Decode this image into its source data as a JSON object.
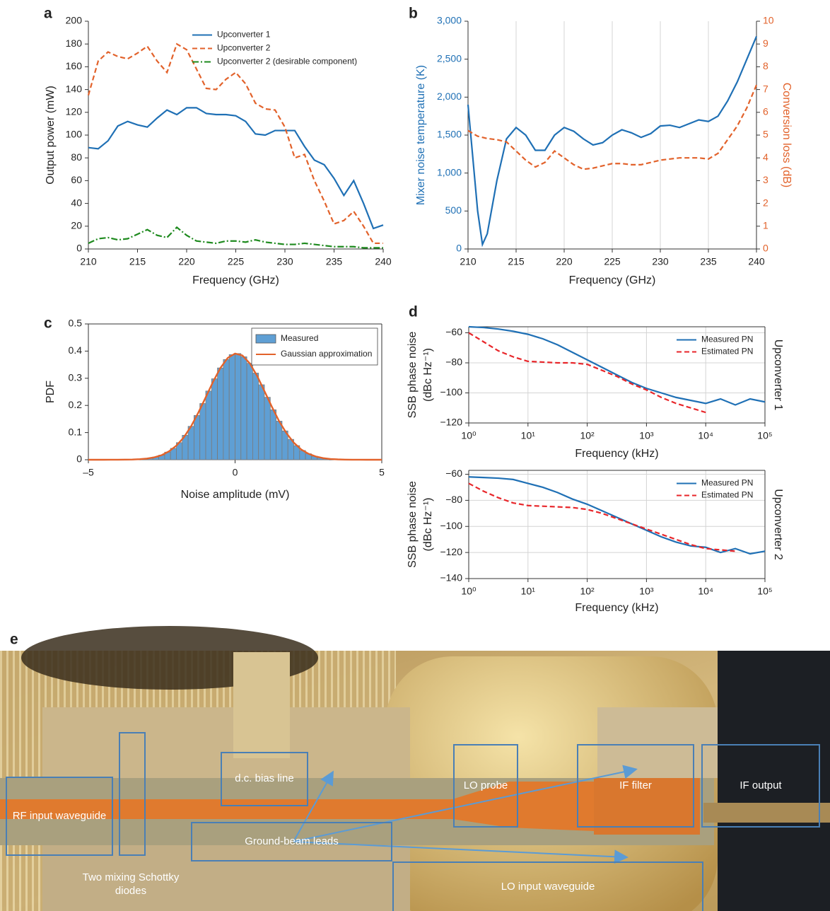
{
  "chart_data": [
    {
      "type": "line",
      "panel_label": "a",
      "xlabel": "Frequency (GHz)",
      "ylabel": "Output power (mW)",
      "x": [
        210,
        211,
        212,
        213,
        214,
        215,
        216,
        217,
        218,
        219,
        220,
        221,
        222,
        223,
        224,
        225,
        226,
        227,
        228,
        229,
        230,
        231,
        232,
        233,
        234,
        235,
        236,
        237,
        238,
        239,
        240
      ],
      "xlim": [
        210,
        240
      ],
      "xticks": [
        210,
        215,
        220,
        225,
        230,
        235,
        240
      ],
      "ylim": [
        0,
        200
      ],
      "yticks": [
        0,
        20,
        40,
        60,
        80,
        100,
        120,
        140,
        160,
        180,
        200
      ],
      "grid": false,
      "legend": "upper right",
      "series": [
        {
          "name": "Upconverter 1",
          "color": "#1f70b5",
          "style": "solid",
          "values": [
            89,
            88,
            95,
            108,
            112,
            109,
            107,
            115,
            122,
            118,
            124,
            124,
            119,
            118,
            118,
            117,
            112,
            101,
            100,
            104,
            104,
            104,
            90,
            78,
            74,
            62,
            47,
            60,
            40,
            18,
            21
          ]
        },
        {
          "name": "Upconverter 2",
          "color": "#e2622b",
          "style": "dashed",
          "values": [
            135,
            165,
            173,
            169,
            167,
            172,
            178,
            165,
            155,
            180,
            175,
            158,
            141,
            140,
            149,
            155,
            145,
            128,
            123,
            122,
            107,
            80,
            83,
            60,
            42,
            22,
            25,
            33,
            20,
            5,
            5
          ]
        },
        {
          "name": "Upconverter 2 (desirable component)",
          "color": "#1e8a1e",
          "style": "dashdot",
          "values": [
            5,
            9,
            10,
            8,
            9,
            13,
            17,
            12,
            10,
            19,
            12,
            7,
            6,
            5,
            7,
            7,
            6,
            8,
            6,
            5,
            4,
            4,
            5,
            4,
            3,
            2,
            2,
            2,
            1,
            1,
            1
          ]
        }
      ]
    },
    {
      "type": "line",
      "panel_label": "b",
      "xlabel": "Frequency (GHz)",
      "ylabel": "Mixer noise temperature (K)",
      "y2label": "Conversion loss (dB)",
      "x": [
        210,
        211,
        211.5,
        212,
        213,
        214,
        215,
        216,
        217,
        218,
        219,
        220,
        221,
        222,
        223,
        224,
        225,
        226,
        227,
        228,
        229,
        230,
        231,
        232,
        233,
        234,
        235,
        236,
        237,
        238,
        239,
        240
      ],
      "xlim": [
        210,
        240
      ],
      "xticks": [
        210,
        215,
        220,
        225,
        230,
        235,
        240
      ],
      "ylim": [
        0,
        3000
      ],
      "yticks": [
        0,
        500,
        {
          "value": 1000,
          "label": "1,000"
        },
        {
          "value": 1500,
          "label": "1,500"
        },
        {
          "value": 2000,
          "label": "2,000"
        },
        {
          "value": 2500,
          "label": "2,500"
        },
        {
          "value": 3000,
          "label": "3,000"
        }
      ],
      "y2lim": [
        0,
        10
      ],
      "y2ticks": [
        0,
        1,
        2,
        3,
        4,
        5,
        6,
        7,
        8,
        9,
        10
      ],
      "grid": "x",
      "series": [
        {
          "color": "#1f70b5",
          "style": "solid",
          "values": [
            1900,
            500,
            60,
            200,
            900,
            1450,
            1600,
            1500,
            1300,
            1300,
            1500,
            1600,
            1550,
            1450,
            1370,
            1400,
            1500,
            1570,
            1530,
            1470,
            1520,
            1620,
            1630,
            1600,
            1650,
            1700,
            1680,
            1750,
            1950,
            2200,
            2500,
            2800
          ]
        },
        {
          "color": "#e2622b",
          "style": "dashed",
          "axis": "y2",
          "values": [
            5.2,
            4.95,
            4.9,
            4.85,
            4.8,
            4.7,
            4.3,
            3.9,
            3.6,
            3.8,
            4.3,
            4.0,
            3.7,
            3.5,
            3.55,
            3.65,
            3.75,
            3.75,
            3.7,
            3.7,
            3.8,
            3.9,
            3.95,
            4.0,
            4.0,
            4.0,
            3.95,
            4.2,
            4.8,
            5.4,
            6.2,
            7.2
          ]
        }
      ]
    },
    {
      "type": "histogram",
      "panel_label": "c",
      "xlabel": "Noise amplitude (mV)",
      "ylabel": "PDF",
      "xlim": [
        -5,
        5
      ],
      "xticks": [
        {
          "value": -5,
          "label": "–5"
        },
        0,
        5
      ],
      "ylim": [
        0,
        0.5
      ],
      "yticks": [
        0,
        0.1,
        0.2,
        0.3,
        0.4,
        0.5
      ],
      "legend": "upper right",
      "bar_name": "Measured",
      "color": "#5f9fd4",
      "bins": [
        -3.2,
        -3,
        -2.8,
        -2.6,
        -2.4,
        -2.2,
        -2,
        -1.8,
        -1.6,
        -1.4,
        -1.2,
        -1,
        -0.8,
        -0.6,
        -0.4,
        -0.2,
        0,
        0.2,
        0.4,
        0.6,
        0.8,
        1,
        1.2,
        1.4,
        1.6,
        1.8,
        2,
        2.2,
        2.4,
        2.6,
        2.8,
        3,
        3.2
      ],
      "values": [
        0.003,
        0.006,
        0.01,
        0.017,
        0.028,
        0.042,
        0.063,
        0.09,
        0.123,
        0.163,
        0.207,
        0.253,
        0.298,
        0.338,
        0.369,
        0.387,
        0.391,
        0.379,
        0.355,
        0.319,
        0.276,
        0.23,
        0.184,
        0.142,
        0.106,
        0.075,
        0.052,
        0.034,
        0.022,
        0.013,
        0.008,
        0.004
      ],
      "lines": [
        {
          "name": "Gaussian approximation",
          "color": "#e2622b",
          "style": "solid",
          "x": [
            -5,
            -4.75,
            -4.5,
            -4.25,
            -4,
            -3.75,
            -3.5,
            -3.25,
            -3,
            -2.75,
            -2.5,
            -2.25,
            -2,
            -1.75,
            -1.5,
            -1.25,
            -1,
            -0.75,
            -0.5,
            -0.25,
            0,
            0.25,
            0.5,
            0.75,
            1,
            1.25,
            1.5,
            1.75,
            2,
            2.25,
            2.5,
            2.75,
            3,
            3.25,
            3.5,
            3.75,
            4,
            4.25,
            4.5,
            4.75,
            5
          ],
          "values": [
            0,
            0,
            0,
            0.0001,
            0.0001,
            0.0004,
            0.0009,
            0.0021,
            0.0045,
            0.009,
            0.017,
            0.031,
            0.052,
            0.082,
            0.123,
            0.174,
            0.23,
            0.287,
            0.338,
            0.375,
            0.391,
            0.384,
            0.355,
            0.309,
            0.253,
            0.196,
            0.142,
            0.098,
            0.063,
            0.038,
            0.022,
            0.012,
            0.006,
            0.0029,
            0.0013,
            0.0005,
            0.0002,
            0.0001,
            0,
            0,
            0
          ]
        }
      ]
    },
    {
      "type": "line",
      "panel_label": "d",
      "xscale": "log",
      "xlabel": "Frequency (kHz)",
      "ylabel": [
        "SSB phase noise",
        "(dBc Hz⁻¹)"
      ],
      "side_label": "Upconverter 1",
      "x": [
        1,
        1.78,
        3.16,
        5.62,
        10,
        17.8,
        31.6,
        56.2,
        100,
        178,
        316,
        562,
        1000,
        1780,
        3160,
        5620,
        10000,
        17800,
        31600,
        56200,
        100000
      ],
      "xlim": [
        1,
        100000
      ],
      "xticks": [
        {
          "value": 1,
          "label": "10⁰"
        },
        {
          "value": 10,
          "label": "10¹"
        },
        {
          "value": 100,
          "label": "10²"
        },
        {
          "value": 1000,
          "label": "10³"
        },
        {
          "value": 10000,
          "label": "10⁴"
        },
        {
          "value": 100000,
          "label": "10⁵"
        }
      ],
      "ylim": [
        -120,
        -56
      ],
      "yticks": [
        {
          "value": -120,
          "label": "−120"
        },
        {
          "value": -100,
          "label": "−100"
        },
        {
          "value": -80,
          "label": "−80"
        },
        {
          "value": -60,
          "label": "−60"
        }
      ],
      "grid": true,
      "legend": "upper right",
      "series": [
        {
          "name": "Measured PN",
          "color": "#1f70b5",
          "style": "solid",
          "values": [
            -56,
            -56.5,
            -57.5,
            -59,
            -61,
            -64,
            -68,
            -73,
            -78,
            -83,
            -88,
            -93,
            -97,
            -100,
            -103,
            -105,
            -107,
            -104,
            -108,
            -104,
            -106
          ]
        },
        {
          "name": "Estimated PN",
          "color": "#e8262a",
          "style": "dashed",
          "values": [
            -60,
            -66,
            -72,
            -76,
            -79,
            -79.5,
            -80,
            -80,
            -81,
            -85,
            -89,
            -94,
            -98,
            -103,
            -107,
            -110,
            -113,
            null,
            null,
            null,
            null
          ]
        }
      ]
    },
    {
      "type": "line",
      "xscale": "log",
      "xlabel": "Frequency (kHz)",
      "ylabel": [
        "SSB phase noise",
        "(dBc Hz⁻¹)"
      ],
      "side_label": "Upconverter 2",
      "x": [
        1,
        1.78,
        3.16,
        5.62,
        10,
        17.8,
        31.6,
        56.2,
        100,
        178,
        316,
        562,
        1000,
        1780,
        3160,
        5620,
        10000,
        17800,
        31600,
        56200,
        100000
      ],
      "xlim": [
        1,
        100000
      ],
      "xticks": [
        {
          "value": 1,
          "label": "10⁰"
        },
        {
          "value": 10,
          "label": "10¹"
        },
        {
          "value": 100,
          "label": "10²"
        },
        {
          "value": 1000,
          "label": "10³"
        },
        {
          "value": 10000,
          "label": "10⁴"
        },
        {
          "value": 100000,
          "label": "10⁵"
        }
      ],
      "ylim": [
        -140,
        -57
      ],
      "yticks": [
        {
          "value": -140,
          "label": "−140"
        },
        {
          "value": -120,
          "label": "−120"
        },
        {
          "value": -100,
          "label": "−100"
        },
        {
          "value": -80,
          "label": "−80"
        },
        {
          "value": -60,
          "label": "−60"
        }
      ],
      "grid": true,
      "legend": "upper right",
      "series": [
        {
          "name": "Measured PN",
          "color": "#1f70b5",
          "style": "solid",
          "values": [
            -62,
            -62.5,
            -63,
            -64,
            -67,
            -70,
            -74,
            -79,
            -83,
            -88,
            -93,
            -98,
            -103,
            -108,
            -112,
            -115,
            -116,
            -120,
            -117,
            -121,
            -119
          ]
        },
        {
          "name": "Estimated PN",
          "color": "#e8262a",
          "style": "dashed",
          "values": [
            -67,
            -73,
            -78,
            -82,
            -84,
            -84.5,
            -85,
            -85.5,
            -87,
            -90,
            -94,
            -98,
            -102,
            -106,
            -110,
            -114,
            -117,
            -118,
            -119,
            null,
            null
          ]
        }
      ]
    }
  ],
  "photo": {
    "panel_label": "e",
    "labels": [
      "d.c. bias line",
      "RF input waveguide",
      "Two mixing Schottky diodes",
      "LO probe",
      "IF filter",
      "IF output",
      "Ground-beam leads",
      "LO input waveguide"
    ]
  }
}
